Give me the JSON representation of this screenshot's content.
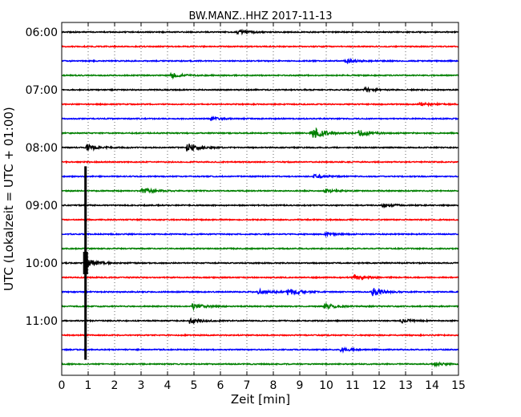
{
  "chart_data": {
    "type": "line",
    "title": "BW.MANZ..HHZ 2017-11-13",
    "xlabel": "Zeit  [min]",
    "ylabel": "UTC (Lokalzeit = UTC + 01:00)",
    "xlim": [
      0,
      15
    ],
    "x_ticks": [
      "0",
      "1",
      "2",
      "3",
      "4",
      "5",
      "6",
      "7",
      "8",
      "9",
      "10",
      "11",
      "12",
      "13",
      "14",
      "15"
    ],
    "y_tick_labels": [
      "06:00",
      "07:00",
      "08:00",
      "09:00",
      "10:00",
      "11:00"
    ],
    "y_tick_trace_index": [
      0,
      4,
      8,
      12,
      16,
      20
    ],
    "trace_minutes": 15,
    "grid": "vertical dotted",
    "trace_colors": [
      "#000000",
      "#ff0000",
      "#0000ff",
      "#008000"
    ],
    "series": [
      {
        "start": "06:00",
        "events": [
          {
            "t": 6.7,
            "amp": 4
          }
        ]
      },
      {
        "start": "06:15",
        "events": []
      },
      {
        "start": "06:30",
        "events": [
          {
            "t": 10.8,
            "amp": 4
          }
        ]
      },
      {
        "start": "06:45",
        "events": [
          {
            "t": 4.2,
            "amp": 5
          }
        ]
      },
      {
        "start": "07:00",
        "events": [
          {
            "t": 11.5,
            "amp": 4
          }
        ]
      },
      {
        "start": "07:15",
        "events": [
          {
            "t": 13.6,
            "amp": 4
          }
        ]
      },
      {
        "start": "07:30",
        "events": [
          {
            "t": 5.7,
            "amp": 3
          }
        ]
      },
      {
        "start": "07:45",
        "events": [
          {
            "t": 9.5,
            "amp": 15
          },
          {
            "t": 11.3,
            "amp": 6
          }
        ]
      },
      {
        "start": "08:00",
        "events": [
          {
            "t": 1.0,
            "amp": 7
          },
          {
            "t": 4.8,
            "amp": 9
          }
        ]
      },
      {
        "start": "08:15",
        "events": []
      },
      {
        "start": "08:30",
        "events": [
          {
            "t": 9.6,
            "amp": 4
          }
        ]
      },
      {
        "start": "08:45",
        "events": [
          {
            "t": 3.1,
            "amp": 6
          },
          {
            "t": 10.0,
            "amp": 4
          }
        ]
      },
      {
        "start": "09:00",
        "events": [
          {
            "t": 12.2,
            "amp": 4
          }
        ]
      },
      {
        "start": "09:15",
        "events": []
      },
      {
        "start": "09:30",
        "events": [
          {
            "t": 10.0,
            "amp": 3
          }
        ]
      },
      {
        "start": "09:45",
        "events": []
      },
      {
        "start": "10:00",
        "events": [
          {
            "t": 1.0,
            "amp": 10
          }
        ]
      },
      {
        "start": "10:15",
        "events": [
          {
            "t": 11.1,
            "amp": 6
          }
        ]
      },
      {
        "start": "10:30",
        "events": [
          {
            "t": 7.5,
            "amp": 5
          },
          {
            "t": 8.6,
            "amp": 8
          },
          {
            "t": 11.8,
            "amp": 9
          }
        ]
      },
      {
        "start": "10:45",
        "events": [
          {
            "t": 5.0,
            "amp": 6
          },
          {
            "t": 10.0,
            "amp": 6
          }
        ]
      },
      {
        "start": "11:00",
        "events": [
          {
            "t": 4.9,
            "amp": 6
          },
          {
            "t": 12.9,
            "amp": 4
          }
        ]
      },
      {
        "start": "11:15",
        "events": []
      },
      {
        "start": "11:30",
        "events": [
          {
            "t": 10.6,
            "amp": 4
          }
        ]
      },
      {
        "start": "11:45",
        "events": [
          {
            "t": 14.1,
            "amp": 4
          }
        ]
      }
    ],
    "large_event": {
      "t": 0.9,
      "from_trace": 9.3,
      "to_trace": 22.7
    }
  }
}
